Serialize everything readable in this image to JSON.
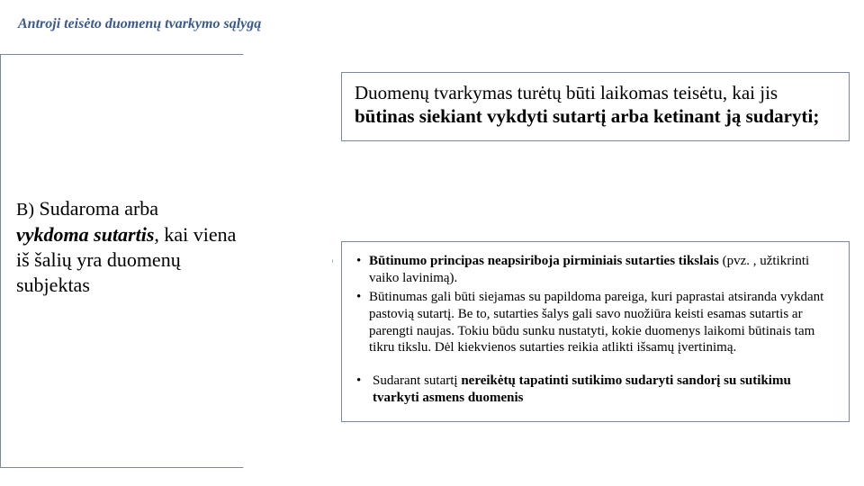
{
  "title": "Antroji teisėto duomenų tvarkymo sąlygą",
  "arrow": {
    "prefix": "B)",
    "line1": "Sudaroma arba",
    "emph": "vykdoma sutartis",
    "rest": ", kai viena iš šalių yra duomenų subjektas"
  },
  "box1": {
    "plain1": "Duomenų tvarkymas turėtų būti laikomas teisėtu, kai jis ",
    "bold": "būtinas siekiant vykdyti sutartį arba ketinant ją sudaryti;",
    "plain2": ""
  },
  "box2": {
    "li1": {
      "bold": "Būtinumo principas neapsiriboja pirminiais sutarties tikslais",
      "rest": " (pvz. , užtikrinti vaiko lavinimą)."
    },
    "li2": "Būtinumas gali būti siejamas su papildoma pareiga, kuri paprastai atsiranda vykdant pastovią sutartį. Be to, sutarties šalys gali savo nuožiūra keisti esamas sutartis ar parengti naujas. Tokiu būdu sunku nustatyti, kokie duomenys laikomi būtinais tam tikru tikslu. Dėl kiekvienos sutarties reikia atlikti išsamų įvertinimą.",
    "li3": {
      "plain": " Sudarant sutartį ",
      "bold": "nereikėtų tapatinti sutikimo sudaryti sandorį su sutikimu tvarkyti asmens duomenis"
    }
  }
}
